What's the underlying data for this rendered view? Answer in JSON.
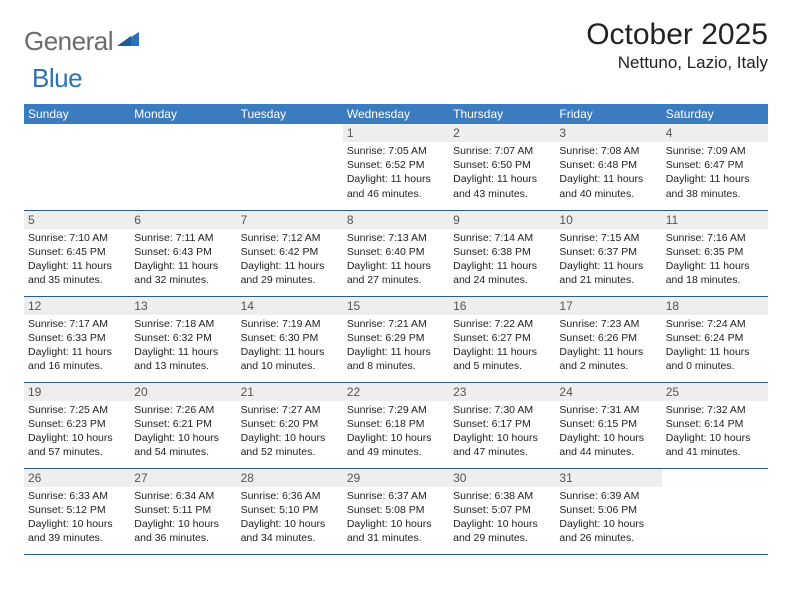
{
  "logo": {
    "part1": "General",
    "part2": "Blue"
  },
  "title": "October 2025",
  "location": "Nettuno, Lazio, Italy",
  "colors": {
    "header_bg": "#3b7bbf",
    "row_border": "#2a5d8f",
    "daynum_bg": "#eeeeee",
    "logo_gray": "#6b6b6b",
    "logo_blue": "#2a72b5"
  },
  "day_headers": [
    "Sunday",
    "Monday",
    "Tuesday",
    "Wednesday",
    "Thursday",
    "Friday",
    "Saturday"
  ],
  "weeks": [
    [
      null,
      null,
      null,
      {
        "n": "1",
        "sr": "7:05 AM",
        "ss": "6:52 PM",
        "dl": "11 hours and 46 minutes."
      },
      {
        "n": "2",
        "sr": "7:07 AM",
        "ss": "6:50 PM",
        "dl": "11 hours and 43 minutes."
      },
      {
        "n": "3",
        "sr": "7:08 AM",
        "ss": "6:48 PM",
        "dl": "11 hours and 40 minutes."
      },
      {
        "n": "4",
        "sr": "7:09 AM",
        "ss": "6:47 PM",
        "dl": "11 hours and 38 minutes."
      }
    ],
    [
      {
        "n": "5",
        "sr": "7:10 AM",
        "ss": "6:45 PM",
        "dl": "11 hours and 35 minutes."
      },
      {
        "n": "6",
        "sr": "7:11 AM",
        "ss": "6:43 PM",
        "dl": "11 hours and 32 minutes."
      },
      {
        "n": "7",
        "sr": "7:12 AM",
        "ss": "6:42 PM",
        "dl": "11 hours and 29 minutes."
      },
      {
        "n": "8",
        "sr": "7:13 AM",
        "ss": "6:40 PM",
        "dl": "11 hours and 27 minutes."
      },
      {
        "n": "9",
        "sr": "7:14 AM",
        "ss": "6:38 PM",
        "dl": "11 hours and 24 minutes."
      },
      {
        "n": "10",
        "sr": "7:15 AM",
        "ss": "6:37 PM",
        "dl": "11 hours and 21 minutes."
      },
      {
        "n": "11",
        "sr": "7:16 AM",
        "ss": "6:35 PM",
        "dl": "11 hours and 18 minutes."
      }
    ],
    [
      {
        "n": "12",
        "sr": "7:17 AM",
        "ss": "6:33 PM",
        "dl": "11 hours and 16 minutes."
      },
      {
        "n": "13",
        "sr": "7:18 AM",
        "ss": "6:32 PM",
        "dl": "11 hours and 13 minutes."
      },
      {
        "n": "14",
        "sr": "7:19 AM",
        "ss": "6:30 PM",
        "dl": "11 hours and 10 minutes."
      },
      {
        "n": "15",
        "sr": "7:21 AM",
        "ss": "6:29 PM",
        "dl": "11 hours and 8 minutes."
      },
      {
        "n": "16",
        "sr": "7:22 AM",
        "ss": "6:27 PM",
        "dl": "11 hours and 5 minutes."
      },
      {
        "n": "17",
        "sr": "7:23 AM",
        "ss": "6:26 PM",
        "dl": "11 hours and 2 minutes."
      },
      {
        "n": "18",
        "sr": "7:24 AM",
        "ss": "6:24 PM",
        "dl": "11 hours and 0 minutes."
      }
    ],
    [
      {
        "n": "19",
        "sr": "7:25 AM",
        "ss": "6:23 PM",
        "dl": "10 hours and 57 minutes."
      },
      {
        "n": "20",
        "sr": "7:26 AM",
        "ss": "6:21 PM",
        "dl": "10 hours and 54 minutes."
      },
      {
        "n": "21",
        "sr": "7:27 AM",
        "ss": "6:20 PM",
        "dl": "10 hours and 52 minutes."
      },
      {
        "n": "22",
        "sr": "7:29 AM",
        "ss": "6:18 PM",
        "dl": "10 hours and 49 minutes."
      },
      {
        "n": "23",
        "sr": "7:30 AM",
        "ss": "6:17 PM",
        "dl": "10 hours and 47 minutes."
      },
      {
        "n": "24",
        "sr": "7:31 AM",
        "ss": "6:15 PM",
        "dl": "10 hours and 44 minutes."
      },
      {
        "n": "25",
        "sr": "7:32 AM",
        "ss": "6:14 PM",
        "dl": "10 hours and 41 minutes."
      }
    ],
    [
      {
        "n": "26",
        "sr": "6:33 AM",
        "ss": "5:12 PM",
        "dl": "10 hours and 39 minutes."
      },
      {
        "n": "27",
        "sr": "6:34 AM",
        "ss": "5:11 PM",
        "dl": "10 hours and 36 minutes."
      },
      {
        "n": "28",
        "sr": "6:36 AM",
        "ss": "5:10 PM",
        "dl": "10 hours and 34 minutes."
      },
      {
        "n": "29",
        "sr": "6:37 AM",
        "ss": "5:08 PM",
        "dl": "10 hours and 31 minutes."
      },
      {
        "n": "30",
        "sr": "6:38 AM",
        "ss": "5:07 PM",
        "dl": "10 hours and 29 minutes."
      },
      {
        "n": "31",
        "sr": "6:39 AM",
        "ss": "5:06 PM",
        "dl": "10 hours and 26 minutes."
      },
      null
    ]
  ],
  "labels": {
    "sunrise": "Sunrise: ",
    "sunset": "Sunset: ",
    "daylight": "Daylight: "
  }
}
